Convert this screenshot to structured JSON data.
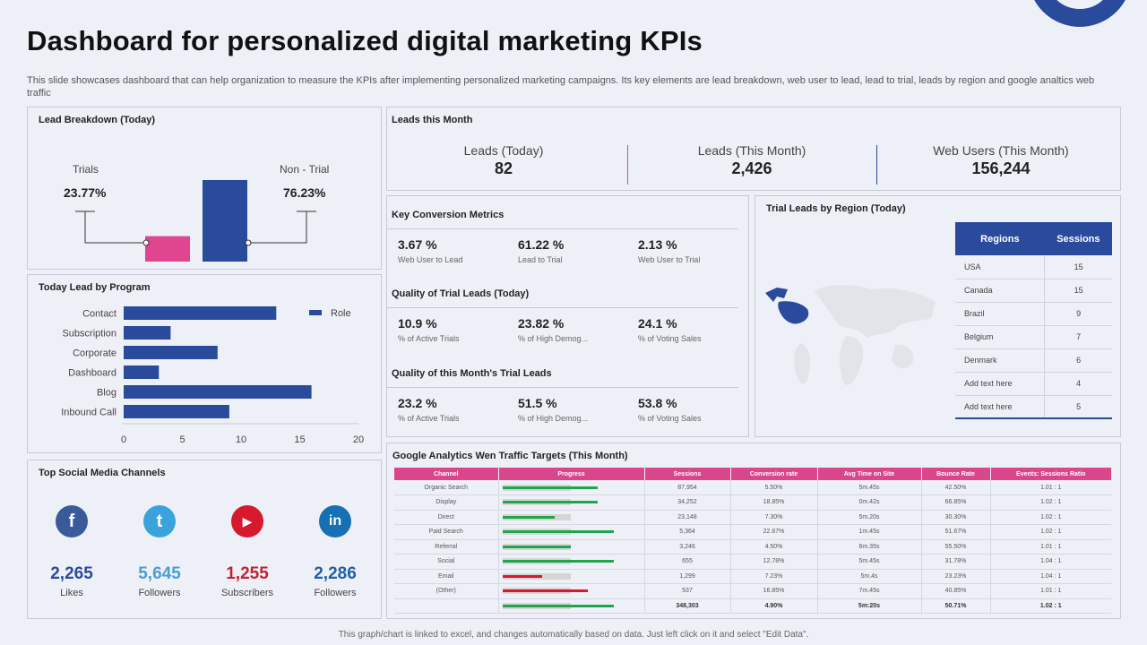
{
  "page": {
    "title": "Dashboard for personalized digital marketing KPIs",
    "subtitle": "This slide showcases dashboard that can help organization to measure the KPIs after implementing personalized marketing campaigns. Its key elements are lead breakdown, web user to lead, lead to trial, leads by region and google analtics web traffic",
    "footer": "This graph/chart is linked to excel, and changes automatically based on data. Just left click on it and select \"Edit Data\"."
  },
  "colors": {
    "accent": "#2a4a9b",
    "pink": "#e0458f",
    "green": "#1fa64a",
    "red": "#d7192d"
  },
  "lead_breakdown": {
    "title": "Lead Breakdown (Today)",
    "trials_label": "Trials",
    "trials_pct": "23.77%",
    "nontrial_label": "Non - Trial",
    "nontrial_pct": "76.23%",
    "trials_value": 23.77,
    "nontrial_value": 76.23
  },
  "leads_month": {
    "title": "Leads this Month",
    "kpis": [
      {
        "label": "Leads (Today)",
        "value": "82"
      },
      {
        "label": "Leads (This Month)",
        "value": "2,426"
      },
      {
        "label": "Web Users (This Month)",
        "value": "156,244"
      }
    ]
  },
  "conversion": {
    "sections": [
      {
        "title": "Key Conversion Metrics",
        "metrics": [
          {
            "value": "3.67 %",
            "label": "Web User to Lead"
          },
          {
            "value": "61.22 %",
            "label": "Lead to Trial"
          },
          {
            "value": "2.13 %",
            "label": "Web User to Trial"
          }
        ]
      },
      {
        "title": "Quality of Trial Leads (Today)",
        "metrics": [
          {
            "value": "10.9 %",
            "label": "% of Active Trials"
          },
          {
            "value": "23.82 %",
            "label": "% of High Demog..."
          },
          {
            "value": "24.1 %",
            "label": "% of Voting Sales"
          }
        ]
      },
      {
        "title": "Quality of this Month's Trial Leads",
        "metrics": [
          {
            "value": "23.2 %",
            "label": "% of Active Trials"
          },
          {
            "value": "51.5 %",
            "label": "% of High Demog..."
          },
          {
            "value": "53.8 %",
            "label": "% of Voting Sales"
          }
        ]
      }
    ]
  },
  "regions": {
    "title": "Trial Leads by Region (Today)",
    "headers": [
      "Regions",
      "Sessions"
    ],
    "rows": [
      [
        "USA",
        "15"
      ],
      [
        "Canada",
        "15"
      ],
      [
        "Brazil",
        "9"
      ],
      [
        "Belgium",
        "7"
      ],
      [
        "Denmark",
        "6"
      ],
      [
        "Add text here",
        "4"
      ],
      [
        "Add text here",
        "5"
      ]
    ]
  },
  "program": {
    "title": "Today Lead by Program",
    "legend": "Role"
  },
  "chart_data": {
    "type": "bar",
    "orientation": "horizontal",
    "title": "Today Lead by Program",
    "categories": [
      "Contact",
      "Subscription",
      "Corporate",
      "Dashboard",
      "Blog",
      "Inbound Call"
    ],
    "series": [
      {
        "name": "Role",
        "values": [
          13,
          4,
          8,
          3,
          16,
          9
        ]
      }
    ],
    "xlim": [
      0,
      20
    ],
    "xticks": [
      "0",
      "5",
      "10",
      "15",
      "20"
    ],
    "legend": "top-right"
  },
  "social": {
    "title": "Top Social Media Channels",
    "channels": [
      {
        "icon": "facebook-icon",
        "glyph": "f",
        "value": "2,265",
        "label": "Likes",
        "color": "#2a4a9b",
        "icon_color": "#3b5a9a"
      },
      {
        "icon": "twitter-icon",
        "glyph": "t",
        "value": "5,645",
        "label": "Followers",
        "color": "#4a9fd0",
        "icon_color": "#3ba3dc"
      },
      {
        "icon": "youtube-icon",
        "glyph": "▶",
        "value": "1,255",
        "label": "Subscribers",
        "color": "#c4212f",
        "icon_color": "#d7192d"
      },
      {
        "icon": "linkedin-icon",
        "glyph": "in",
        "value": "2,286",
        "label": "Followers",
        "color": "#1f5fa6",
        "icon_color": "#1670b3"
      }
    ]
  },
  "analytics": {
    "title": "Google Analytics Wen Traffic Targets (This Month)",
    "headers": [
      "Channel",
      "Progress",
      "Sessions",
      "Conversion rate",
      "Avg Time on Site",
      "Bounce Rate",
      "Events: Sessions Ratio"
    ],
    "rows": [
      {
        "channel": "Organic Search",
        "progress": 0.86,
        "color": "green",
        "sessions": "87,954",
        "conv": "5.50%",
        "time": "5m.45s",
        "bounce": "42.50%",
        "ratio": "1.01 : 1"
      },
      {
        "channel": "Display",
        "progress": 0.86,
        "color": "green",
        "sessions": "34,252",
        "conv": "18.85%",
        "time": "0m.42s",
        "bounce": "66.85%",
        "ratio": "1.02 : 1"
      },
      {
        "channel": "Direct",
        "progress": 0.47,
        "color": "green",
        "sessions": "23,148",
        "conv": "7.30%",
        "time": "5m.20s",
        "bounce": "30.30%",
        "ratio": "1.02 : 1"
      },
      {
        "channel": "Paid Search",
        "progress": 1.0,
        "color": "green",
        "sessions": "5,364",
        "conv": "22.67%",
        "time": "1m.45s",
        "bounce": "51.67%",
        "ratio": "1.02 : 1"
      },
      {
        "channel": "Referral",
        "progress": 0.62,
        "color": "green",
        "sessions": "3,246",
        "conv": "4.50%",
        "time": "6m.35s",
        "bounce": "55.50%",
        "ratio": "1.01 : 1"
      },
      {
        "channel": "Social",
        "progress": 1.0,
        "color": "green",
        "sessions": "655",
        "conv": "12.78%",
        "time": "5m.45s",
        "bounce": "31.78%",
        "ratio": "1.04 : 1"
      },
      {
        "channel": "Email",
        "progress": 0.36,
        "color": "red",
        "sessions": "1,299",
        "conv": "7.23%",
        "time": "5m.4s",
        "bounce": "23.23%",
        "ratio": "1.04 : 1"
      },
      {
        "channel": "(Other)",
        "progress": 0.77,
        "color": "red",
        "sessions": "537",
        "conv": "16.85%",
        "time": "7m.45s",
        "bounce": "40.85%",
        "ratio": "1.01 : 1"
      },
      {
        "channel": "",
        "progress": 1.0,
        "color": "green",
        "sessions": "348,303",
        "conv": "4.90%",
        "time": "5m:20s",
        "bounce": "50.71%",
        "ratio": "1.02 : 1",
        "total": true
      }
    ]
  }
}
